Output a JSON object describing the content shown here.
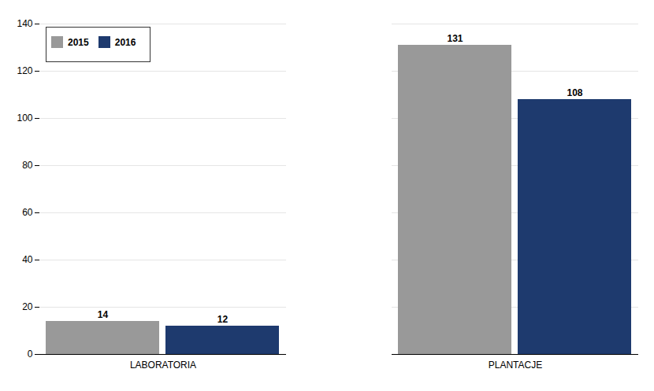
{
  "chart_data": {
    "type": "bar",
    "categories": [
      "LABORATORIA",
      "PLANTACJE"
    ],
    "series": [
      {
        "name": "2015",
        "color": "#999999",
        "values": [
          14,
          131
        ]
      },
      {
        "name": "2016",
        "color": "#1e3a6e",
        "values": [
          12,
          108
        ]
      }
    ],
    "ylim": [
      0,
      140
    ],
    "yticks": [
      0,
      20,
      40,
      60,
      80,
      100,
      120,
      140
    ],
    "grid": true,
    "legend": "upper left",
    "data_labels": true
  }
}
